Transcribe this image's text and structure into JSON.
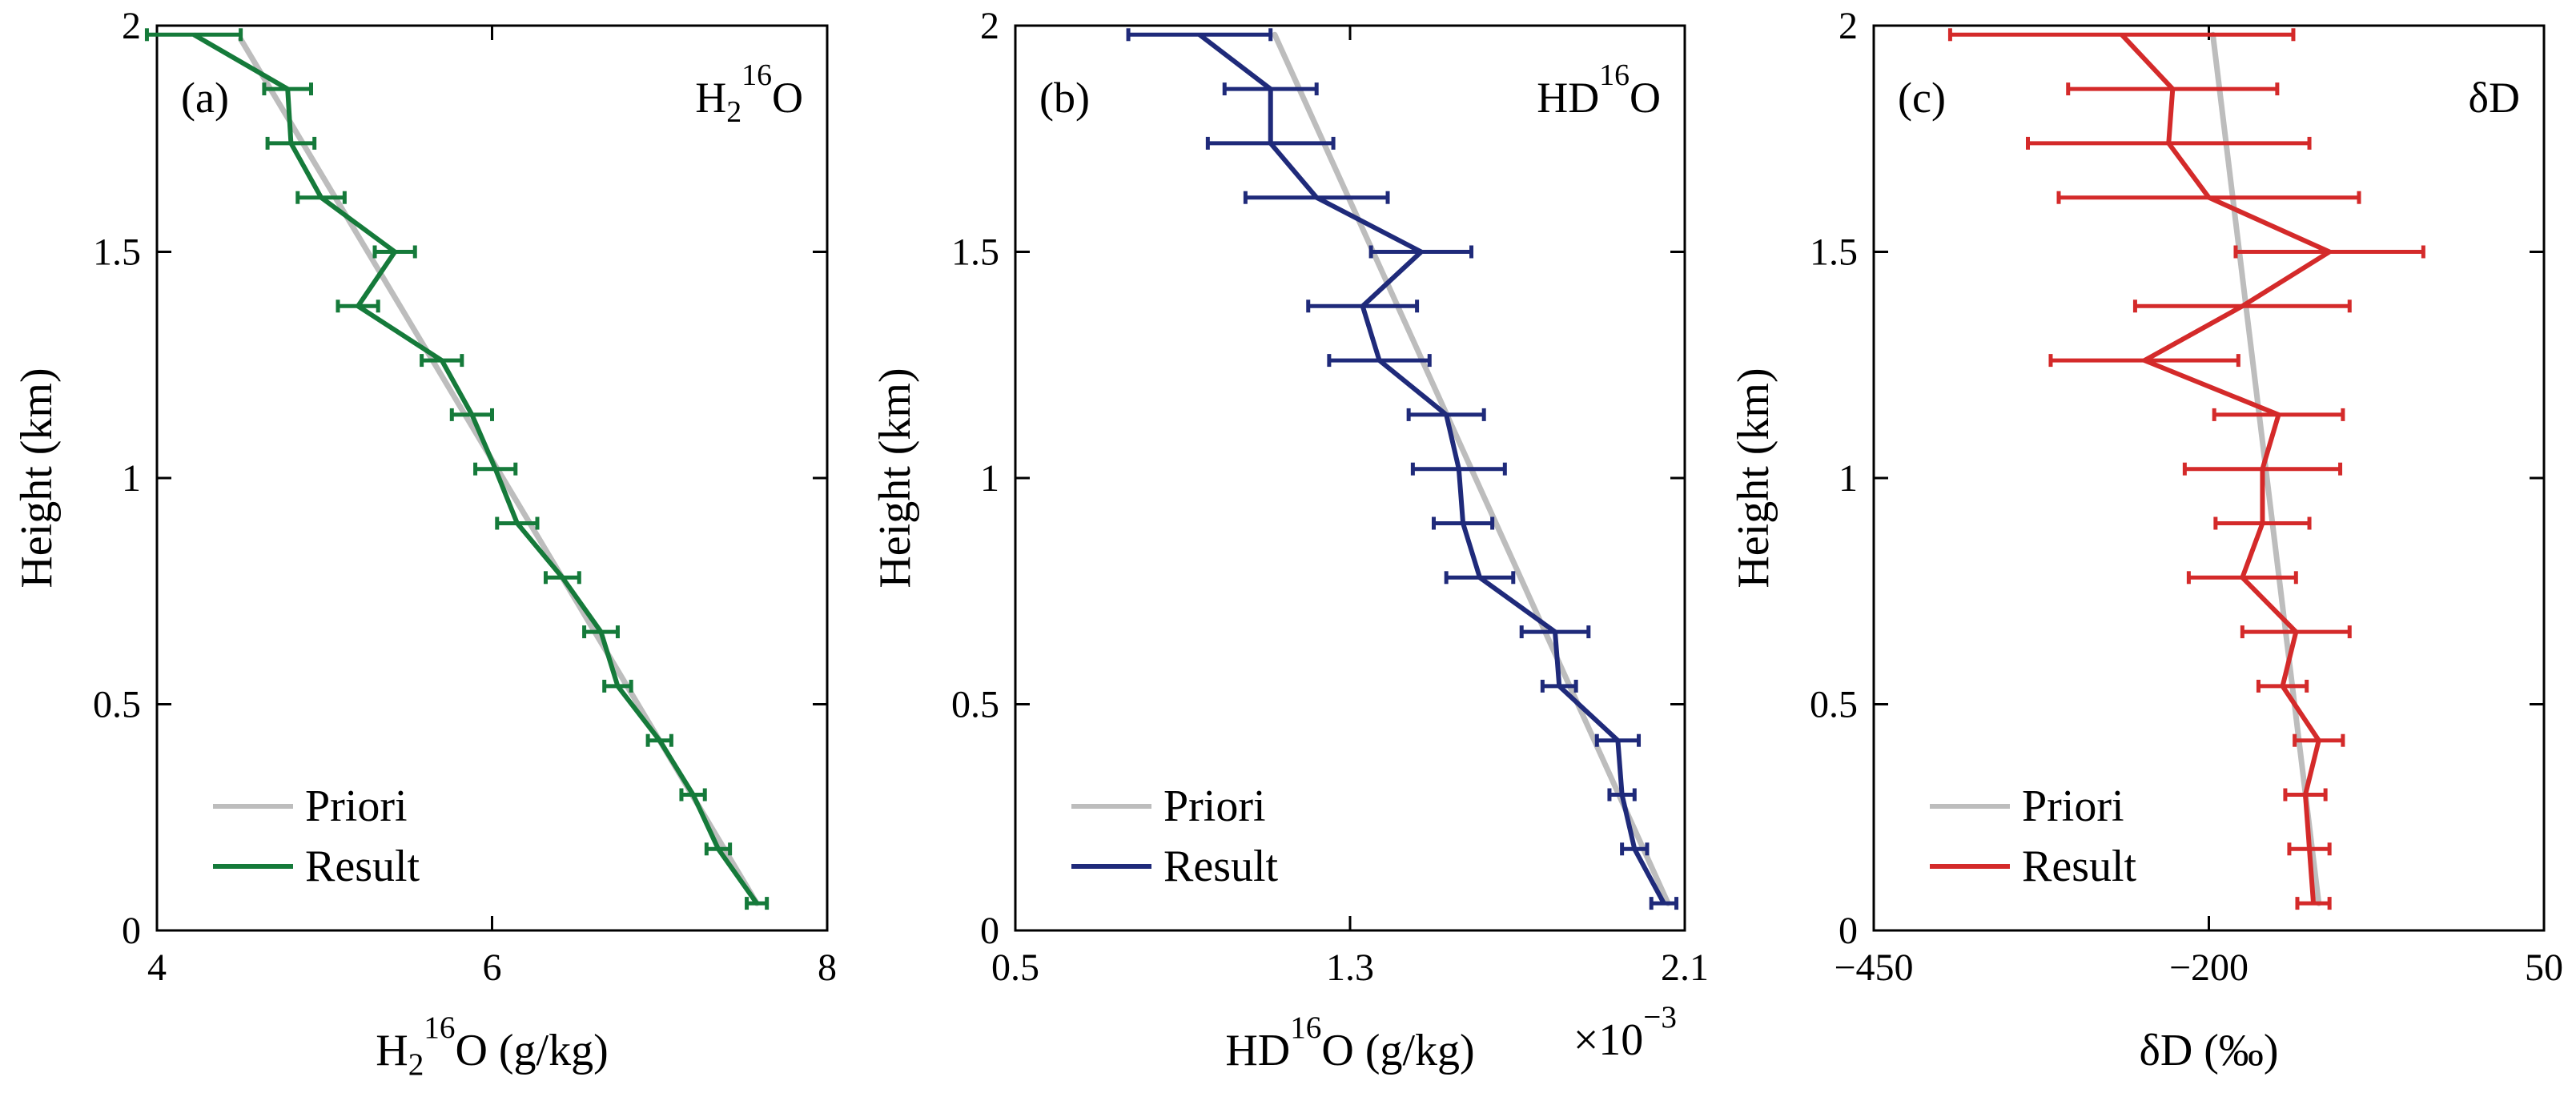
{
  "chart_data": [
    {
      "type": "line",
      "panel_label": "(a)",
      "title": {
        "main": "H",
        "sub": "2",
        "sup": "16",
        "tail": "O"
      },
      "xlabel": {
        "main": "H",
        "sub": "2",
        "sup": "16",
        "tail": "O (g/kg)"
      },
      "ylabel": "Height (km)",
      "xlim": [
        4,
        8
      ],
      "ylim": [
        0,
        2
      ],
      "xticks": [
        4,
        6,
        8
      ],
      "xtick_labels": [
        "4",
        "6",
        "8"
      ],
      "yticks": [
        0,
        0.5,
        1,
        1.5,
        2
      ],
      "ytick_labels": [
        "0",
        "0.5",
        "1",
        "1.5",
        "2"
      ],
      "xscale_note": "",
      "legend_position": "bottom-left",
      "colors": {
        "priori": "#bdbdbd",
        "result": "#157a3a"
      },
      "series": [
        {
          "name": "Priori",
          "x": [
            7.58,
            4.5
          ],
          "y": [
            0.06,
            1.97
          ]
        },
        {
          "name": "Result",
          "y": [
            0.06,
            0.18,
            0.3,
            0.42,
            0.54,
            0.66,
            0.78,
            0.9,
            1.02,
            1.14,
            1.26,
            1.38,
            1.5,
            1.62,
            1.74,
            1.86,
            1.98
          ],
          "x": [
            7.58,
            7.35,
            7.2,
            7.0,
            6.75,
            6.65,
            6.42,
            6.15,
            6.02,
            5.88,
            5.7,
            5.2,
            5.42,
            4.98,
            4.8,
            4.78,
            4.22
          ],
          "err": [
            0.06,
            0.07,
            0.07,
            0.07,
            0.08,
            0.1,
            0.1,
            0.12,
            0.12,
            0.12,
            0.12,
            0.12,
            0.12,
            0.14,
            0.14,
            0.14,
            0.28
          ]
        }
      ],
      "legend": [
        "Priori",
        "Result"
      ]
    },
    {
      "type": "line",
      "panel_label": "(b)",
      "title": {
        "main": "HD",
        "sub": "",
        "sup": "16",
        "tail": "O"
      },
      "xlabel": {
        "main": "HD",
        "sub": "",
        "sup": "16",
        "tail": "O (g/kg)"
      },
      "ylabel": "Height (km)",
      "xlim": [
        0.5,
        2.1
      ],
      "ylim": [
        0,
        2
      ],
      "xticks": [
        0.5,
        1.3,
        2.1
      ],
      "xtick_labels": [
        "0.5",
        "1.3",
        "2.1"
      ],
      "yticks": [
        0,
        0.5,
        1,
        1.5,
        2
      ],
      "ytick_labels": [
        "0",
        "0.5",
        "1",
        "1.5",
        "2"
      ],
      "xscale_note": {
        "prefix": "×10",
        "sup": "−3"
      },
      "legend_position": "bottom-left",
      "colors": {
        "priori": "#bdbdbd",
        "result": "#1f2a7a"
      },
      "series": [
        {
          "name": "Priori",
          "x": [
            2.06,
            1.12
          ],
          "y": [
            0.06,
            1.98
          ]
        },
        {
          "name": "Result",
          "y": [
            0.06,
            0.18,
            0.3,
            0.42,
            0.54,
            0.66,
            0.78,
            0.9,
            1.02,
            1.14,
            1.26,
            1.38,
            1.5,
            1.62,
            1.74,
            1.86,
            1.98
          ],
          "x": [
            2.05,
            1.98,
            1.95,
            1.94,
            1.8,
            1.79,
            1.61,
            1.57,
            1.56,
            1.53,
            1.37,
            1.33,
            1.47,
            1.22,
            1.11,
            1.11,
            0.94
          ],
          "err": [
            0.03,
            0.03,
            0.03,
            0.05,
            0.04,
            0.08,
            0.08,
            0.07,
            0.11,
            0.09,
            0.12,
            0.13,
            0.12,
            0.17,
            0.15,
            0.11,
            0.17
          ]
        }
      ],
      "legend": [
        "Priori",
        "Result"
      ]
    },
    {
      "type": "line",
      "panel_label": "(c)",
      "title": {
        "main": "δD",
        "sub": "",
        "sup": "",
        "tail": ""
      },
      "xlabel": {
        "main": "δD (‰)",
        "sub": "",
        "sup": "",
        "tail": ""
      },
      "ylabel": "Height (km)",
      "xlim": [
        -450,
        50
      ],
      "ylim": [
        0,
        2
      ],
      "xticks": [
        -450,
        -200,
        50
      ],
      "xtick_labels": [
        "−450",
        "−200",
        "50"
      ],
      "yticks": [
        0,
        0.5,
        1,
        1.5,
        2
      ],
      "ytick_labels": [
        "0",
        "0.5",
        "1",
        "1.5",
        "2"
      ],
      "xscale_note": "",
      "legend_position": "bottom-left",
      "colors": {
        "priori": "#bdbdbd",
        "result": "#d42a2a"
      },
      "series": [
        {
          "name": "Priori",
          "x": [
            -118,
            -197
          ],
          "y": [
            0.06,
            1.98
          ]
        },
        {
          "name": "Result",
          "y": [
            0.06,
            0.18,
            0.3,
            0.42,
            0.54,
            0.66,
            0.78,
            0.9,
            1.02,
            1.14,
            1.26,
            1.38,
            1.5,
            1.62,
            1.74,
            1.86,
            1.98
          ],
          "x": [
            -122,
            -125,
            -128,
            -118,
            -145,
            -135,
            -175,
            -160,
            -160,
            -148,
            -248,
            -175,
            -110,
            -200,
            -230,
            -227,
            -265
          ],
          "err": [
            12,
            15,
            15,
            18,
            18,
            40,
            40,
            35,
            58,
            48,
            70,
            80,
            70,
            112,
            105,
            78,
            128
          ]
        }
      ],
      "legend": [
        "Priori",
        "Result"
      ]
    }
  ]
}
